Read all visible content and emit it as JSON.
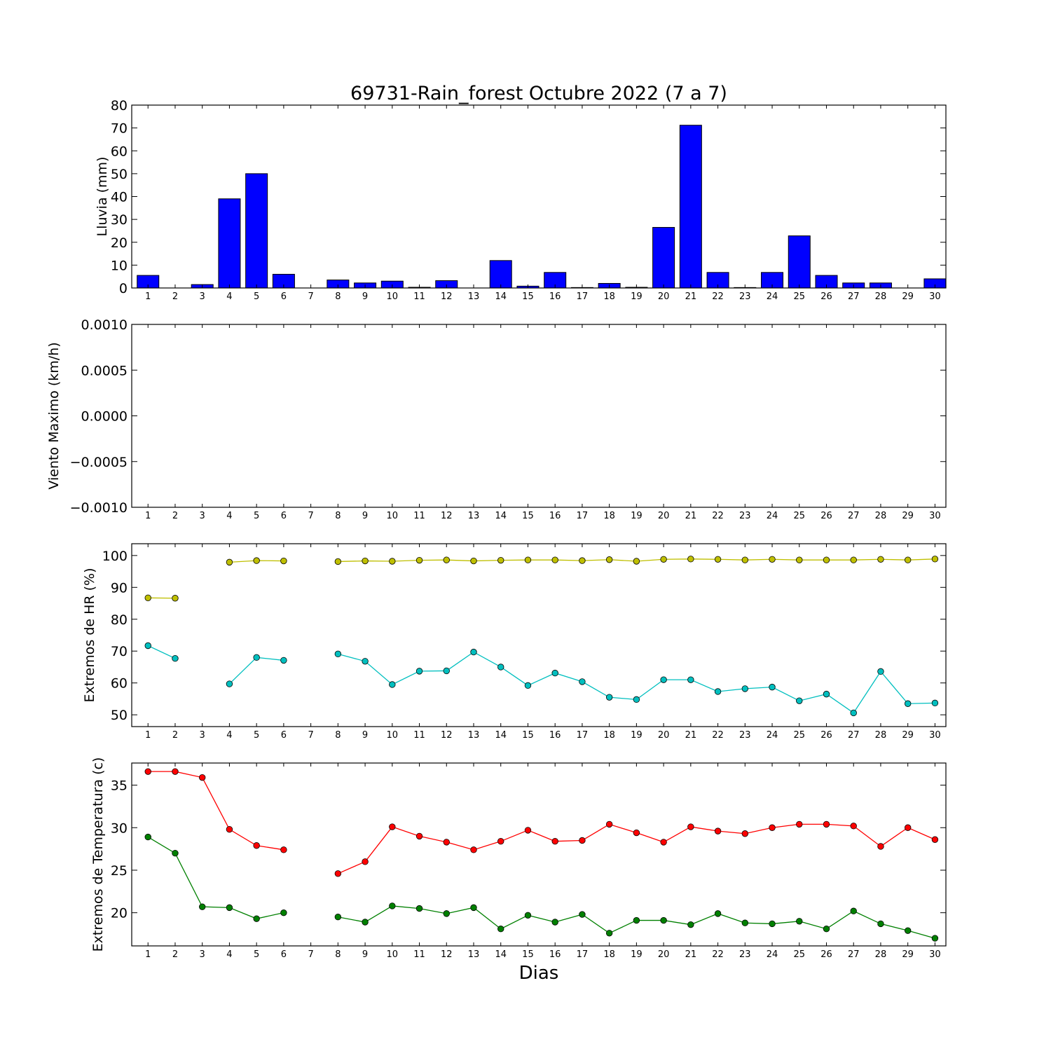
{
  "chart_data": [
    {
      "type": "bar",
      "title": "69731-Rain_forest Octubre 2022  (7 a 7)",
      "ylabel": "Lluvia (mm)",
      "xlabel": "",
      "categories": [
        1,
        2,
        3,
        4,
        5,
        6,
        7,
        8,
        9,
        10,
        11,
        12,
        13,
        14,
        15,
        16,
        17,
        18,
        19,
        20,
        21,
        22,
        23,
        24,
        25,
        26,
        27,
        28,
        29,
        30
      ],
      "values": [
        5.5,
        0,
        1.5,
        39,
        50,
        6,
        0,
        3.5,
        2.2,
        3,
        0.3,
        3.2,
        0,
        12,
        0.8,
        6.8,
        0.2,
        2,
        0.3,
        26.5,
        71.2,
        6.8,
        0.2,
        6.8,
        22.8,
        5.5,
        2.2,
        2.2,
        0,
        4
      ],
      "ylim": [
        0,
        80
      ],
      "yticks": [
        0,
        10,
        20,
        30,
        40,
        50,
        60,
        70,
        80
      ],
      "color": "#0000ff"
    },
    {
      "type": "line",
      "title": "",
      "ylabel": "Viento Maximo (km/h)",
      "xlabel": "",
      "x": [
        1,
        2,
        3,
        4,
        5,
        6,
        7,
        8,
        9,
        10,
        11,
        12,
        13,
        14,
        15,
        16,
        17,
        18,
        19,
        20,
        21,
        22,
        23,
        24,
        25,
        26,
        27,
        28,
        29,
        30
      ],
      "series": [],
      "ylim": [
        -0.001,
        0.001
      ],
      "yticks": [
        -0.001,
        -0.0005,
        0,
        0.0005,
        0.001
      ],
      "ytick_labels": [
        "−0.0010",
        "−0.0005",
        "0.0000",
        "0.0005",
        "0.0010"
      ]
    },
    {
      "type": "line",
      "title": "",
      "ylabel": "Extremos de HR (%)",
      "xlabel": "",
      "x": [
        1,
        2,
        3,
        4,
        5,
        6,
        7,
        8,
        9,
        10,
        11,
        12,
        13,
        14,
        15,
        16,
        17,
        18,
        19,
        20,
        21,
        22,
        23,
        24,
        25,
        26,
        27,
        28,
        29,
        30
      ],
      "series": [
        {
          "color": "#bfbf00",
          "values": [
            86.7,
            86.6,
            null,
            97.9,
            98.4,
            98.3,
            null,
            98.1,
            98.3,
            98.2,
            98.5,
            98.6,
            98.3,
            98.5,
            98.6,
            98.6,
            98.4,
            98.7,
            98.2,
            98.8,
            98.9,
            98.8,
            98.6,
            98.8,
            98.6,
            98.6,
            98.6,
            98.8,
            98.6,
            98.9
          ]
        },
        {
          "color": "#00bfbf",
          "values": [
            71.7,
            67.7,
            null,
            59.7,
            68,
            67.1,
            null,
            69.1,
            66.8,
            59.5,
            63.7,
            63.8,
            69.7,
            65,
            59.2,
            63.1,
            60.4,
            55.5,
            54.8,
            61,
            61,
            57.3,
            58.2,
            58.7,
            54.4,
            56.5,
            50.6,
            63.6,
            53.5,
            53.7
          ]
        }
      ],
      "ylim": [
        46.3,
        103.7
      ],
      "yticks": [
        50,
        60,
        70,
        80,
        90,
        100
      ]
    },
    {
      "type": "line",
      "title": "",
      "ylabel": "Extremos de Temperatura (c)",
      "xlabel": "Dias",
      "x": [
        1,
        2,
        3,
        4,
        5,
        6,
        7,
        8,
        9,
        10,
        11,
        12,
        13,
        14,
        15,
        16,
        17,
        18,
        19,
        20,
        21,
        22,
        23,
        24,
        25,
        26,
        27,
        28,
        29,
        30
      ],
      "series": [
        {
          "color": "#ff0000",
          "values": [
            36.6,
            36.6,
            35.9,
            29.8,
            27.9,
            27.4,
            null,
            24.6,
            26,
            30.1,
            29,
            28.3,
            27.4,
            28.4,
            29.7,
            28.4,
            28.5,
            30.4,
            29.4,
            28.3,
            30.1,
            29.6,
            29.3,
            30,
            30.4,
            30.4,
            30.2,
            27.8,
            30,
            28.6
          ]
        },
        {
          "color": "#008000",
          "values": [
            28.9,
            27,
            20.7,
            20.6,
            19.3,
            20,
            null,
            19.5,
            18.9,
            20.8,
            20.5,
            19.9,
            20.6,
            18.1,
            19.7,
            18.9,
            19.8,
            17.6,
            19.1,
            19.1,
            18.6,
            19.9,
            18.8,
            18.7,
            19,
            18.1,
            20.2,
            18.7,
            17.9,
            17
          ]
        }
      ],
      "ylim": [
        16.1,
        37.6
      ],
      "yticks": [
        20,
        25,
        30,
        35
      ]
    }
  ]
}
